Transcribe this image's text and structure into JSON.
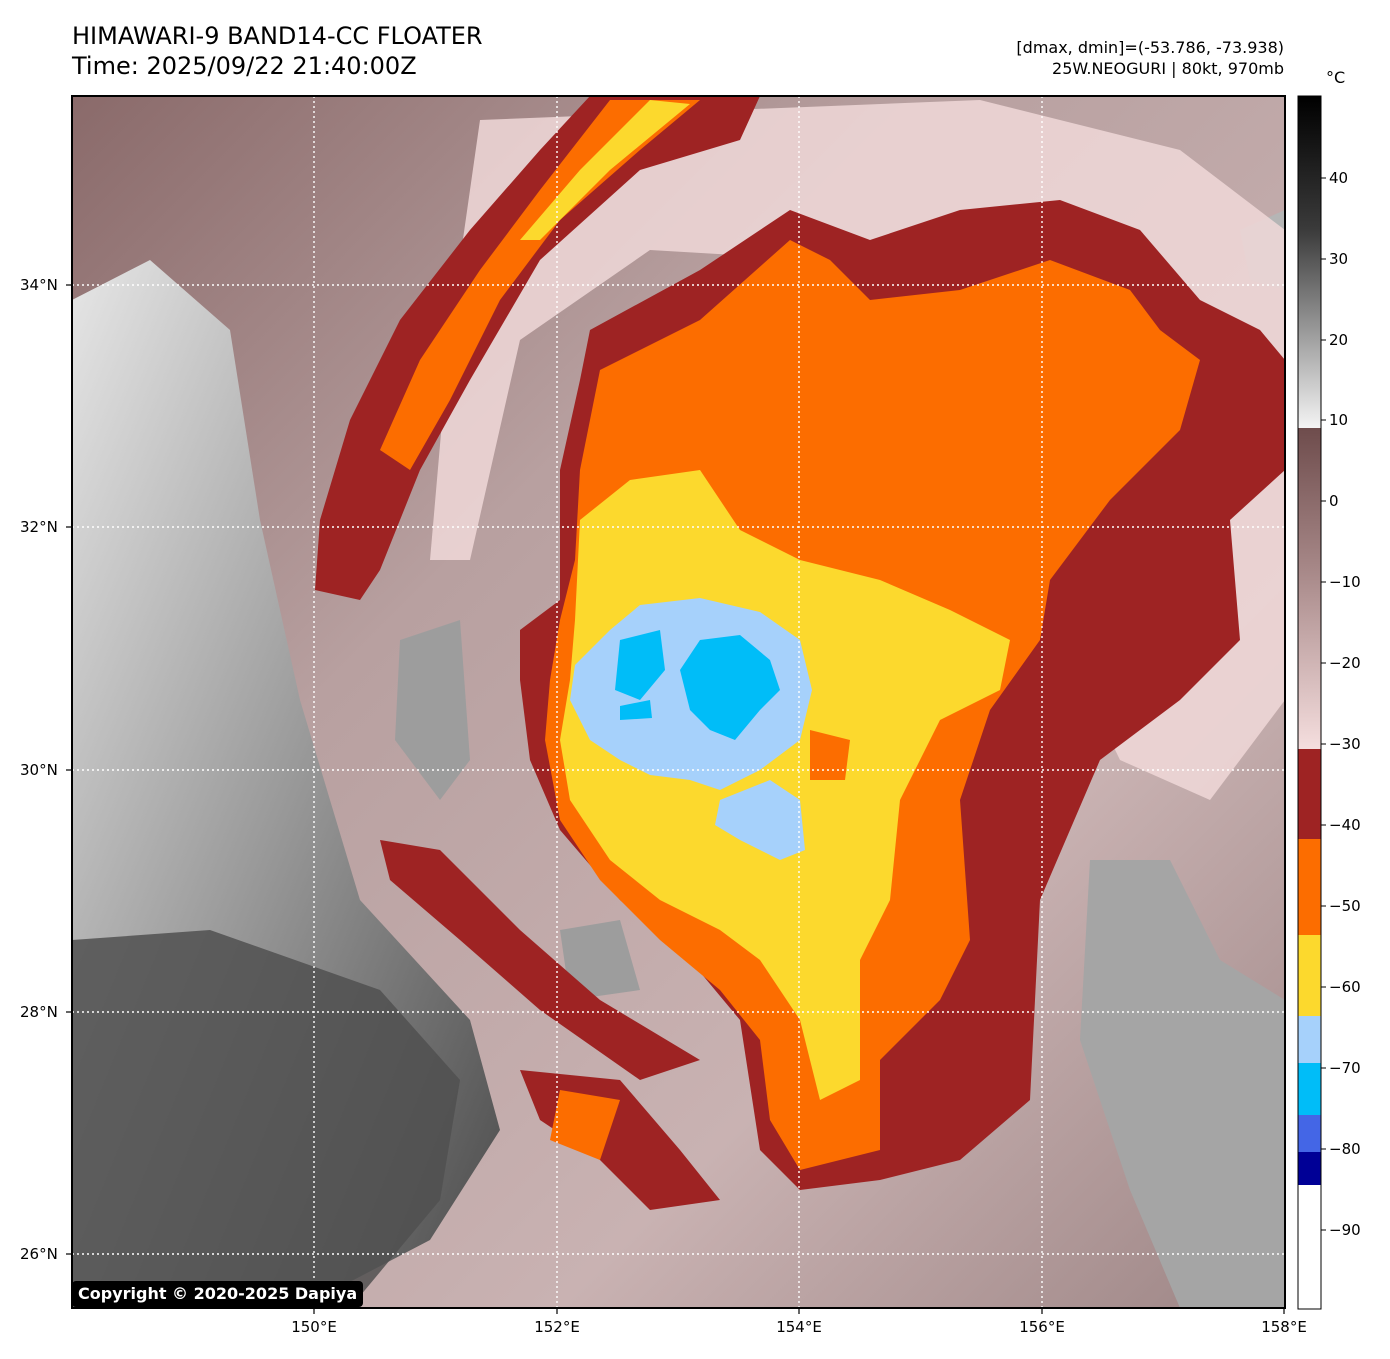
{
  "header": {
    "title_line1": "HIMAWARI-9 BAND14-CC FLOATER",
    "title_line2": "Time: 2025/09/22 21:40:00Z",
    "stats": "[dmax, dmin]=(-53.786, -73.938)",
    "storm": "25W.NEOGURI | 80kt, 970mb"
  },
  "axes": {
    "lat_ticks": [
      "34°N",
      "32°N",
      "30°N",
      "28°N",
      "26°N"
    ],
    "lon_ticks": [
      "150°E",
      "152°E",
      "154°E",
      "156°E",
      "158°E"
    ],
    "lat_range": [
      25.55,
      35.55
    ],
    "lon_range": [
      148.0,
      158.0
    ],
    "grid": "dotted white"
  },
  "colorbar": {
    "unit": "°C",
    "ticks": [
      "40",
      "30",
      "20",
      "10",
      "0",
      "−10",
      "−20",
      "−30",
      "−40",
      "−50",
      "−60",
      "−70",
      "−80",
      "−90"
    ],
    "range": [
      -100,
      50
    ],
    "segments": [
      {
        "from": 10,
        "to": 50,
        "style": "grayscale"
      },
      {
        "from": -31,
        "to": 9,
        "style": "brown-pink gradient"
      },
      {
        "from": -42,
        "to": -31,
        "color": "#9e2323"
      },
      {
        "from": -54,
        "to": -42,
        "color": "#fc6d00"
      },
      {
        "from": -64,
        "to": -54,
        "color": "#fcd92d"
      },
      {
        "from": -70,
        "to": -64,
        "color": "#a6d1fb"
      },
      {
        "from": -76,
        "to": -70,
        "color": "#00bdf8"
      },
      {
        "from": -81,
        "to": -76,
        "color": "#4466e6"
      },
      {
        "from": -85,
        "to": -81,
        "color": "#000096"
      },
      {
        "from": -100,
        "to": -85,
        "color": "#ffffff"
      }
    ]
  },
  "copyright": "Copyright © 2020-2025 Dapiya",
  "colors": {
    "cold_ring": "#9e2323",
    "orange": "#fc6d00",
    "yellow": "#fcd92d",
    "light_blue": "#a6d1fb",
    "cyan": "#00bdf8",
    "warm_brown": "#7a5151",
    "pink": "#f2d6d6",
    "gray_dark": "#4a4a4a",
    "gray_light": "#c9c9c9"
  }
}
